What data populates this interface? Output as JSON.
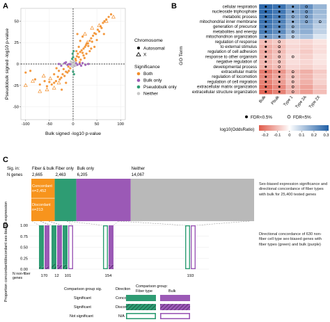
{
  "panel_letters": {
    "a": "A",
    "b": "B",
    "c": "C",
    "d": "D"
  },
  "colors": {
    "both": "#f28e2b",
    "bulk_only": "#9b59b6",
    "pseudobulk_only": "#2e9c73",
    "neither": "#c8c8c8",
    "fiber": "#2e9c73",
    "bulk": "#9b59b6",
    "concordant": "#f7941d",
    "low": "#1f5fa6",
    "mid": "#ffffff",
    "high": "#e05a4a"
  },
  "chart_data": [
    {
      "id": "A",
      "type": "scatter",
      "xlabel": "Bulk signed -log10 p-value",
      "ylabel": "Pseudobulk signed -log10 p-value",
      "xlim": [
        -110,
        110
      ],
      "ylim": [
        -65,
        65
      ],
      "x_ticks": [
        -100,
        -50,
        0,
        50,
        100
      ],
      "y_ticks": [
        -50,
        -25,
        0,
        25,
        50
      ],
      "legend_shape": {
        "title": "Chromosome",
        "items": [
          {
            "label": "Autosomal",
            "symbol": "dot"
          },
          {
            "label": "X",
            "symbol": "triangle"
          }
        ]
      },
      "legend_color": {
        "title": "Significance",
        "items": [
          {
            "label": "Both",
            "color": "#f28e2b"
          },
          {
            "label": "Bulk only",
            "color": "#9b59b6"
          },
          {
            "label": "Pseudobulk only",
            "color": "#2e9c73"
          },
          {
            "label": "Neither",
            "color": "#c8c8c8"
          }
        ]
      },
      "series": [
        {
          "name": "Both",
          "color": "#f28e2b",
          "points": [
            [
              5,
              6
            ],
            [
              8,
              9
            ],
            [
              10,
              12
            ],
            [
              12,
              8
            ],
            [
              15,
              14
            ],
            [
              18,
              16
            ],
            [
              20,
              13
            ],
            [
              22,
              18
            ],
            [
              25,
              20
            ],
            [
              27,
              22
            ],
            [
              30,
              24
            ],
            [
              32,
              21
            ],
            [
              35,
              27
            ],
            [
              38,
              30
            ],
            [
              40,
              26
            ],
            [
              42,
              33
            ],
            [
              45,
              36
            ],
            [
              48,
              35
            ],
            [
              52,
              40
            ],
            [
              55,
              38
            ],
            [
              58,
              44
            ],
            [
              60,
              42
            ],
            [
              63,
              48
            ],
            [
              66,
              50
            ],
            [
              70,
              52
            ],
            [
              75,
              55
            ],
            [
              80,
              58
            ],
            [
              -6,
              -5
            ],
            [
              -9,
              -8
            ],
            [
              -12,
              -10
            ],
            [
              -15,
              -9
            ],
            [
              -18,
              -14
            ],
            [
              -22,
              -12
            ],
            [
              -25,
              -16
            ],
            [
              -28,
              -18
            ],
            [
              -32,
              -15
            ],
            [
              -36,
              -20
            ],
            [
              -40,
              -22
            ],
            [
              -45,
              -24
            ],
            [
              -50,
              -21
            ],
            [
              -55,
              -26
            ],
            [
              -60,
              -20
            ],
            [
              -70,
              -24
            ],
            [
              -80,
              -18
            ],
            [
              -90,
              -8
            ],
            [
              -100,
              -10
            ],
            [
              12,
              20
            ],
            [
              15,
              27
            ],
            [
              20,
              32
            ],
            [
              9,
              35
            ],
            [
              6,
              4
            ],
            [
              16,
              5
            ],
            [
              24,
              7
            ],
            [
              28,
              12
            ],
            [
              35,
              15
            ],
            [
              45,
              20
            ],
            [
              -20,
              -6
            ],
            [
              -30,
              -8
            ],
            [
              -40,
              -12
            ],
            [
              -15,
              -22
            ],
            [
              -24,
              -30
            ],
            [
              -35,
              -5
            ],
            [
              50,
              28
            ],
            [
              65,
              35
            ],
            [
              7,
              15
            ],
            [
              14,
              2
            ],
            [
              -10,
              -3
            ],
            [
              22,
              10
            ],
            [
              38,
              18
            ]
          ]
        },
        {
          "name": "Bulk only",
          "color": "#9b59b6",
          "points": [
            [
              -8,
              0
            ],
            [
              -5,
              -1
            ],
            [
              -12,
              -1
            ],
            [
              -18,
              1
            ],
            [
              -25,
              -2
            ],
            [
              -30,
              0
            ],
            [
              6,
              1
            ],
            [
              9,
              -1
            ],
            [
              14,
              0
            ],
            [
              20,
              1
            ],
            [
              26,
              -1
            ],
            [
              32,
              0
            ],
            [
              -3,
              1
            ],
            [
              3,
              -2
            ],
            [
              -15,
              2
            ],
            [
              17,
              -2
            ]
          ]
        },
        {
          "name": "Pseudobulk only",
          "color": "#2e9c73",
          "points": [
            [
              0,
              8
            ],
            [
              -1,
              12
            ],
            [
              1,
              15
            ],
            [
              0,
              -9
            ],
            [
              2,
              -12
            ],
            [
              -2,
              6
            ]
          ]
        },
        {
          "name": "Neither",
          "color": "#c8c8c8",
          "points": [
            [
              -2,
              1
            ],
            [
              1,
              -1
            ],
            [
              3,
              2
            ],
            [
              -4,
              -2
            ],
            [
              2,
              3
            ],
            [
              -1,
              -3
            ],
            [
              4,
              -1
            ],
            [
              -3,
              2
            ],
            [
              0,
              0
            ],
            [
              5,
              -2
            ],
            [
              -5,
              3
            ]
          ]
        }
      ],
      "x_chrom_points": [
        [
          -100,
          -25
        ],
        [
          -85,
          -20
        ],
        [
          -70,
          -32
        ],
        [
          -55,
          -30
        ],
        [
          -40,
          -28
        ],
        [
          -30,
          -22
        ],
        [
          25,
          35
        ],
        [
          40,
          42
        ],
        [
          55,
          45
        ],
        [
          70,
          50
        ],
        [
          85,
          55
        ],
        [
          30,
          25
        ],
        [
          -62,
          -14
        ],
        [
          -48,
          -17
        ]
      ]
    },
    {
      "id": "B",
      "type": "heatmap",
      "ylabel": "GO Term",
      "columns": [
        "Bulk",
        "Pbulk",
        "Type 1",
        "Type 2A",
        "Type 2X"
      ],
      "rows": [
        "cellular respiration",
        "nucleoside triphosphate",
        "metabolic process",
        "mitochondrial inner membrane",
        "generation of precursor",
        "metabolites and energy",
        "mitochondrion organization",
        "regulation of response",
        "to external stimulus",
        "regulation of cell adhesion",
        "response to other organism",
        "negative regulation of",
        "developmental process",
        "extracellular matrix",
        "regulation of locomotion",
        "regulation of cell migration",
        "extracellular matrix organization",
        "extracellular structure organization"
      ],
      "values": [
        [
          0.3,
          0.28,
          0.2,
          0.22,
          0.15
        ],
        [
          0.3,
          0.27,
          0.18,
          0.2,
          0.14
        ],
        [
          0.29,
          0.26,
          0.17,
          0.19,
          0.13
        ],
        [
          0.28,
          0.25,
          0.16,
          0.18,
          0.12
        ],
        [
          0.27,
          0.24,
          0.15,
          0.17,
          0.1
        ],
        [
          0.26,
          0.23,
          0.14,
          0.16,
          0.09
        ],
        [
          0.2,
          0.18,
          0.1,
          0.12,
          0.05
        ],
        [
          -0.1,
          -0.08,
          -0.05,
          -0.06,
          -0.04
        ],
        [
          -0.12,
          -0.1,
          -0.06,
          -0.07,
          -0.05
        ],
        [
          -0.13,
          -0.1,
          -0.06,
          -0.08,
          -0.05
        ],
        [
          -0.12,
          -0.09,
          -0.05,
          -0.07,
          -0.04
        ],
        [
          -0.11,
          -0.09,
          -0.05,
          -0.06,
          -0.04
        ],
        [
          -0.12,
          -0.1,
          -0.06,
          -0.07,
          -0.05
        ],
        [
          -0.2,
          -0.16,
          -0.1,
          -0.12,
          -0.08
        ],
        [
          -0.18,
          -0.14,
          -0.09,
          -0.11,
          -0.07
        ],
        [
          -0.19,
          -0.15,
          -0.09,
          -0.12,
          -0.07
        ],
        [
          -0.22,
          -0.18,
          -0.11,
          -0.14,
          -0.09
        ],
        [
          -0.23,
          -0.19,
          -0.12,
          -0.15,
          -0.1
        ]
      ],
      "markers": [
        [
          "f",
          "f",
          "f",
          "o",
          ""
        ],
        [
          "f",
          "f",
          "f",
          "o",
          ""
        ],
        [
          "f",
          "f",
          "o",
          "o",
          ""
        ],
        [
          "f",
          "f",
          "f",
          "o",
          "o"
        ],
        [
          "f",
          "f",
          "o",
          "",
          ""
        ],
        [
          "f",
          "f",
          "o",
          "",
          ""
        ],
        [
          "f",
          "f",
          "o",
          "",
          ""
        ],
        [
          "f",
          "o",
          "",
          "",
          ""
        ],
        [
          "f",
          "o",
          "",
          "",
          ""
        ],
        [
          "f",
          "o",
          "",
          "",
          ""
        ],
        [
          "f",
          "o",
          "o",
          "",
          ""
        ],
        [
          "f",
          "o",
          "",
          "",
          ""
        ],
        [
          "f",
          "o",
          "",
          "",
          ""
        ],
        [
          "f",
          "f",
          "o",
          "",
          ""
        ],
        [
          "f",
          "f",
          "o",
          "",
          ""
        ],
        [
          "f",
          "f",
          "o",
          "",
          ""
        ],
        [
          "f",
          "f",
          "o",
          "",
          ""
        ],
        [
          "f",
          "f",
          "o",
          "",
          ""
        ]
      ],
      "legend_fdr": [
        {
          "label": "FDR<0.5%",
          "symbol": "filled"
        },
        {
          "label": "FDR<5%",
          "symbol": "open"
        }
      ],
      "colorbar": {
        "title": "log10(OddsRatio)",
        "ticks": [
          -0.2,
          -0.1,
          0,
          0.1,
          0.2,
          0.3
        ],
        "tick_labels": [
          "-0.2",
          "-0.1",
          "0",
          "0.1",
          "0.2",
          "0.3"
        ],
        "range": [
          -0.25,
          0.32
        ]
      }
    },
    {
      "id": "C",
      "type": "bar",
      "row_labels": [
        "Sig. in:",
        "N genes"
      ],
      "categories": [
        "Fiber & bulk",
        "Fiber only",
        "Bulk only",
        "Neither"
      ],
      "values": [
        2665,
        2463,
        6205,
        14067
      ],
      "value_labels": [
        "2,665",
        "2,463",
        "6,205",
        "14,067"
      ],
      "segment_colors": [
        "#f7941d",
        "#2e9c73",
        "#9b59b6",
        "#b9b9b9"
      ],
      "split": {
        "concordant": "Concordant\nn=2,452",
        "discordant": "Discordant\nn=213",
        "concordant_n": 2452,
        "discordant_n": 213
      },
      "description": "Sex-biased expression significance and directional concordance of fiber types with bulk for 25,400 tested genes"
    },
    {
      "id": "D",
      "type": "bar",
      "ylabel": "Proportion concordant/discordant sex-biased expression",
      "ylim": [
        0,
        1
      ],
      "y_ticks": [
        0,
        0.25,
        0.5,
        0.75,
        1.0
      ],
      "y_tick_labels": [
        "0.00",
        "0.25",
        "0.50",
        "0.75",
        "1.00"
      ],
      "x_row_label": "N non-fiber genes",
      "groups": [
        {
          "label": "170",
          "fiber_significant": 0.06,
          "bulk_significant": 0.06
        },
        {
          "label": "12",
          "fiber_significant": 0.12,
          "bulk_significant": 0.1
        },
        {
          "label": "101",
          "fiber_significant": 0.1,
          "bulk_significant": 0.0
        },
        {
          "label": "154",
          "fiber_significant": 0.0,
          "bulk_significant": 0.1
        },
        {
          "label": "193",
          "fiber_significant": 0.0,
          "bulk_significant": 0.0
        }
      ],
      "description": "Directional concordance of 630 non-fiber cell type sex-biased genes with fiber types (green) and bulk (purple)"
    }
  ],
  "legend_d": {
    "headers": {
      "sig": "Comparison group sig.",
      "direction": "Direction",
      "group": "Comparison group:",
      "fiber": "Fiber type",
      "bulk": "Bulk"
    },
    "rows": [
      {
        "sig": "Significant",
        "direction": "Concordant"
      },
      {
        "sig": "Significant",
        "direction": "Discordant"
      },
      {
        "sig": "Not significant",
        "direction": "N/A"
      }
    ]
  }
}
